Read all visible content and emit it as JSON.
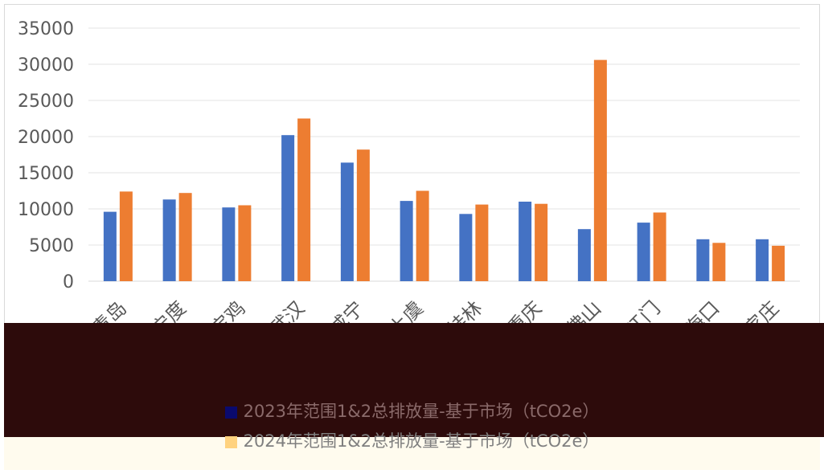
{
  "chart_data": {
    "type": "bar",
    "categories": [
      "青岛",
      "南宁度",
      "宝鸡",
      "武汉",
      "咸宁",
      "上虞",
      "桂林",
      "重庆",
      "佛山",
      "江门",
      "海口",
      "石家庄"
    ],
    "series": [
      {
        "name": "2023年范围1&2总排放量-基于市场（tCO2e）",
        "color": "#4472c4",
        "values": [
          9600,
          11300,
          10200,
          20200,
          16400,
          11100,
          9300,
          11000,
          7200,
          8100,
          5800,
          5800
        ]
      },
      {
        "name": "2024年范围1&2总排放量-基于市场（tCO2e）",
        "color": "#ed7d31",
        "values": [
          12400,
          12200,
          10500,
          22500,
          18200,
          12500,
          10600,
          10700,
          30600,
          9500,
          5300,
          4900
        ]
      }
    ],
    "yticks": [
      "35000",
      "30000",
      "25000",
      "20000",
      "15000",
      "10000",
      "5000",
      "0"
    ],
    "ylim": [
      0,
      35000
    ],
    "grid": true,
    "legend_position": "bottom"
  }
}
